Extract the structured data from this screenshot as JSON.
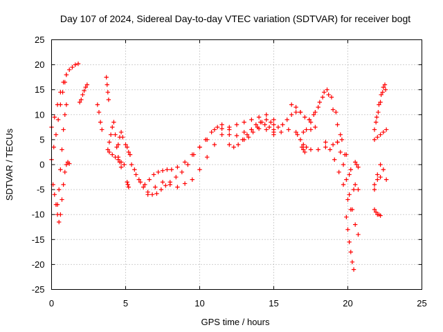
{
  "chart_data": {
    "type": "scatter",
    "title": "Day 107 of 2024, Sidereal Day-to-day VTEC variation (SDTVAR) for receiver bogt",
    "xlabel": "GPS time / hours",
    "ylabel": "SDTVAR / TECUs",
    "xlim": [
      0,
      25
    ],
    "ylim": [
      -25,
      25
    ],
    "xticks": [
      0,
      5,
      10,
      15,
      20,
      25
    ],
    "yticks": [
      -25,
      -20,
      -15,
      -10,
      -5,
      0,
      5,
      10,
      15,
      20,
      25
    ],
    "xtick_labels": [
      "0",
      "5",
      "10",
      "15",
      "20",
      "25"
    ],
    "ytick_labels": [
      "-25",
      "-20",
      "-15",
      "-10",
      "-5",
      "0",
      "5",
      "10",
      "15",
      "20",
      "25"
    ],
    "grid": true,
    "marker": "plus",
    "color": "#ff0000",
    "series": [
      {
        "name": "track-1",
        "x": [
          0,
          0.2,
          0.4,
          0.6,
          0.8,
          1.0,
          1.2,
          1.4,
          1.6,
          1.8
        ],
        "y": [
          7.5,
          9.5,
          12,
          14.5,
          16.5,
          18,
          19,
          19.5,
          20,
          20.2
        ]
      },
      {
        "name": "track-2",
        "x": [
          0,
          0.15,
          0.3,
          0.45,
          0.6,
          0.75,
          0.9,
          1.0
        ],
        "y": [
          1,
          3.5,
          6,
          9,
          12,
          14.5,
          16.5,
          18
        ]
      },
      {
        "name": "track-3",
        "x": [
          0.1,
          0.2,
          0.3,
          0.4,
          0.5,
          0.6,
          0.7,
          0.8,
          0.9,
          1.0,
          1.1,
          1.2
        ],
        "y": [
          -4,
          -6,
          -8,
          -10,
          -11.5,
          -10,
          -7,
          -4,
          -1.5,
          0,
          0.5,
          0.2
        ]
      },
      {
        "name": "track-4",
        "x": [
          0.4,
          0.5,
          0.6,
          0.7,
          0.8,
          0.9,
          1.0
        ],
        "y": [
          -8,
          -5,
          -1,
          3,
          7,
          10,
          12
        ]
      },
      {
        "name": "track-5",
        "x": [
          1.9,
          2.0,
          2.1,
          2.2,
          2.3,
          2.4
        ],
        "y": [
          12.5,
          13,
          14,
          14.8,
          15.5,
          16
        ]
      },
      {
        "name": "track-6",
        "x": [
          3.1,
          3.2,
          3.3,
          3.4
        ],
        "y": [
          12,
          10.5,
          8.5,
          7
        ]
      },
      {
        "name": "track-7",
        "x": [
          3.7,
          3.75,
          3.8,
          3.85
        ],
        "y": [
          17.5,
          16,
          14.5,
          13
        ]
      },
      {
        "name": "track-8",
        "x": [
          3.8,
          3.9,
          4.0,
          4.1,
          4.2,
          4.3,
          4.4,
          4.5,
          4.6,
          4.7
        ],
        "y": [
          3,
          4.5,
          6,
          7.5,
          8.5,
          6,
          3.5,
          1.5,
          0.5,
          -0.5
        ]
      },
      {
        "name": "track-9",
        "x": [
          3.9,
          4.1,
          4.3,
          4.5,
          4.7,
          4.9
        ],
        "y": [
          2.5,
          2,
          1.5,
          1,
          0.5,
          0
        ]
      },
      {
        "name": "track-10",
        "x": [
          4.5,
          4.6,
          4.7,
          4.8
        ],
        "y": [
          4,
          5.5,
          6.5,
          5.5
        ]
      },
      {
        "name": "track-11",
        "x": [
          5.0,
          5.1,
          5.2,
          5.3
        ],
        "y": [
          4,
          3.5,
          2.5,
          2
        ]
      },
      {
        "name": "track-12",
        "x": [
          5.1,
          5.15,
          5.2
        ],
        "y": [
          -3.5,
          -4,
          -4.5
        ]
      },
      {
        "name": "track-13",
        "x": [
          5.3,
          5.6,
          5.9,
          6.2,
          6.5,
          6.8,
          7.1,
          7.4,
          7.7,
          8.0,
          8.4,
          8.8,
          9.2,
          9.6,
          10.0,
          10.4,
          10.8,
          11.2,
          11.5,
          12.0,
          12.5,
          13.0,
          13.5,
          14.0,
          14.5,
          15.0
        ],
        "y": [
          2,
          -1,
          -3,
          -4.5,
          -5.5,
          -6,
          -5.8,
          -5,
          -4.2,
          -3.5,
          -2.5,
          -1.5,
          0,
          2,
          3.5,
          5,
          6.5,
          7.5,
          7.2,
          6,
          5.8,
          6.5,
          7,
          7.2,
          7,
          6.5
        ]
      },
      {
        "name": "track-14",
        "x": [
          5.4,
          5.7,
          6.0,
          6.3,
          6.6,
          6.9,
          7.2,
          7.5,
          7.8,
          8.1,
          8.5,
          9.0,
          9.5,
          10.0,
          10.5,
          11.0,
          11.5,
          12.0,
          12.5,
          13.0,
          13.5,
          14.0,
          14.5,
          15.0
        ],
        "y": [
          0,
          -2,
          -3.5,
          -4,
          -3,
          -2,
          -1.5,
          -1.2,
          -1,
          -1,
          -0.5,
          0.5,
          2,
          3.5,
          5,
          7,
          8,
          7.5,
          8,
          8.5,
          9,
          9.5,
          10,
          9
        ]
      },
      {
        "name": "track-15",
        "x": [
          6.5,
          7.0,
          7.5,
          8.0,
          8.5,
          9.0,
          9.5,
          10.0,
          10.5,
          11.0,
          11.5,
          12.0
        ],
        "y": [
          -6,
          -4.5,
          -3.5,
          -4,
          -4.5,
          -3.8,
          -3,
          -1,
          1.5,
          4,
          6,
          7
        ]
      },
      {
        "name": "track-16",
        "x": [
          12.0,
          12.3,
          12.6,
          12.9,
          13.2,
          13.5,
          13.8,
          14.1,
          14.4,
          14.7
        ],
        "y": [
          4,
          3.5,
          4,
          5,
          6,
          7,
          8,
          8.5,
          8,
          7.5
        ]
      },
      {
        "name": "track-17",
        "x": [
          13.0,
          13.3,
          13.6,
          13.9,
          14.2,
          14.5,
          14.8,
          15.0
        ],
        "y": [
          5,
          5.5,
          6.5,
          7.5,
          8.5,
          9,
          8.5,
          8
        ]
      },
      {
        "name": "track-18",
        "x": [
          15.0,
          15.3,
          15.6,
          15.9,
          16.2,
          16.5,
          16.8,
          17.1,
          17.4
        ],
        "y": [
          7,
          7.5,
          8,
          9,
          10,
          10.5,
          10.5,
          9.5,
          9
        ]
      },
      {
        "name": "track-19",
        "x": [
          15.0,
          15.5,
          16.0,
          16.5,
          17.0,
          17.5,
          17.8
        ],
        "y": [
          6,
          6.5,
          7,
          6.5,
          6.5,
          7,
          7.5
        ]
      },
      {
        "name": "track-20",
        "x": [
          16.2,
          16.5,
          16.8
        ],
        "y": [
          12,
          11.5,
          10.5
        ]
      },
      {
        "name": "track-21",
        "x": [
          16.6,
          16.8,
          17.0,
          17.2
        ],
        "y": [
          6,
          5,
          4,
          3.5
        ]
      },
      {
        "name": "track-22",
        "x": [
          16.9,
          17.0,
          17.1
        ],
        "y": [
          3.5,
          3,
          2.5
        ]
      },
      {
        "name": "track-23",
        "x": [
          17.2,
          17.5,
          17.8,
          18.1,
          18.4,
          18.7,
          19.0,
          19.3,
          19.6,
          19.9,
          20.2,
          20.5
        ],
        "y": [
          7,
          8.5,
          10.5,
          12.5,
          14.5,
          14,
          11,
          8,
          5,
          2,
          -1,
          -4
        ]
      },
      {
        "name": "track-24",
        "x": [
          17.4,
          17.7,
          18.0,
          18.3,
          18.6,
          18.9,
          19.2,
          19.5,
          19.8,
          20.1,
          20.4,
          20.7
        ],
        "y": [
          9,
          10,
          11.5,
          13.5,
          15,
          13.5,
          10.5,
          6,
          2,
          -2,
          -5,
          -5
        ]
      },
      {
        "name": "track-25",
        "x": [
          17.5,
          18.0,
          18.5,
          19.0,
          19.3
        ],
        "y": [
          3,
          3,
          3.5,
          4,
          4.5
        ]
      },
      {
        "name": "track-26",
        "x": [
          18.5,
          18.8,
          19.1,
          19.4,
          19.7,
          20.0,
          20.2
        ],
        "y": [
          4.5,
          3,
          1,
          -1.5,
          -4,
          -7,
          -9
        ]
      },
      {
        "name": "track-27",
        "x": [
          19.3,
          19.5,
          19.7,
          19.9,
          20.1,
          20.3,
          20.5,
          20.7
        ],
        "y": [
          4.5,
          2.5,
          0,
          -3,
          -6,
          -9,
          -12,
          -14
        ]
      },
      {
        "name": "track-28",
        "x": [
          19.9,
          20.0,
          20.1,
          20.2,
          20.3,
          20.4
        ],
        "y": [
          -10.5,
          -13,
          -15.5,
          -17.5,
          -19.5,
          -21
        ]
      },
      {
        "name": "track-29",
        "x": [
          20.5,
          20.6,
          20.7
        ],
        "y": [
          0.5,
          0,
          -0.5
        ]
      },
      {
        "name": "track-30",
        "x": [
          21.8,
          21.9,
          22.0,
          22.1,
          22.2
        ],
        "y": [
          -9,
          -9.5,
          -10,
          -10,
          -10.2
        ]
      },
      {
        "name": "track-31",
        "x": [
          21.8,
          22.0,
          22.2,
          22.4,
          22.6
        ],
        "y": [
          -4,
          -2,
          0,
          -1,
          -3
        ]
      },
      {
        "name": "track-32",
        "x": [
          21.8,
          22.0,
          22.2,
          22.4,
          22.6
        ],
        "y": [
          5,
          5.5,
          6,
          6.5,
          7
        ]
      },
      {
        "name": "track-33",
        "x": [
          21.8,
          21.95,
          22.1,
          22.25,
          22.4,
          22.55
        ],
        "y": [
          7,
          9.5,
          12,
          14,
          15.5,
          15
        ]
      },
      {
        "name": "track-34",
        "x": [
          21.9,
          22.05,
          22.2,
          22.35,
          22.5
        ],
        "y": [
          8.5,
          10.5,
          12.5,
          14.5,
          16
        ]
      },
      {
        "name": "track-35",
        "x": [
          21.8,
          22.0,
          22.2
        ],
        "y": [
          -5,
          -3,
          -2.5
        ]
      }
    ]
  }
}
